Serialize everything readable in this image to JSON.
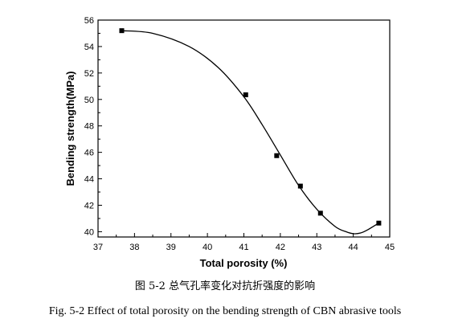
{
  "chart_data": {
    "type": "scatter",
    "xlabel": "Total porosity (%)",
    "ylabel": "Bending strength(MPa)",
    "xlim": [
      37,
      45
    ],
    "ylim": [
      39.6,
      56
    ],
    "xticks": [
      37,
      38,
      39,
      40,
      41,
      42,
      43,
      44,
      45
    ],
    "yticks": [
      40,
      42,
      44,
      46,
      48,
      50,
      52,
      54,
      56
    ],
    "grid": false,
    "legend": "none",
    "points": {
      "x": [
        37.65,
        41.05,
        41.9,
        42.55,
        43.1,
        44.7
      ],
      "y": [
        55.2,
        50.35,
        45.75,
        43.45,
        41.4,
        40.65
      ]
    },
    "fit_curve": {
      "x": [
        37.65,
        38.5,
        39.5,
        40.3,
        41.0,
        41.5,
        42.0,
        42.5,
        43.0,
        43.5,
        43.8,
        44.0,
        44.2,
        44.4,
        44.55,
        44.7
      ],
      "y": [
        55.2,
        55.0,
        54.0,
        52.4,
        50.2,
        48.1,
        45.8,
        43.5,
        41.7,
        40.4,
        40.0,
        39.85,
        39.9,
        40.15,
        40.4,
        40.65
      ]
    }
  },
  "captions": {
    "cn": "图 5-2 总气孔率变化对抗折强度的影响",
    "en": "Fig. 5-2 Effect of total porosity on the bending strength of CBN abrasive tools"
  }
}
